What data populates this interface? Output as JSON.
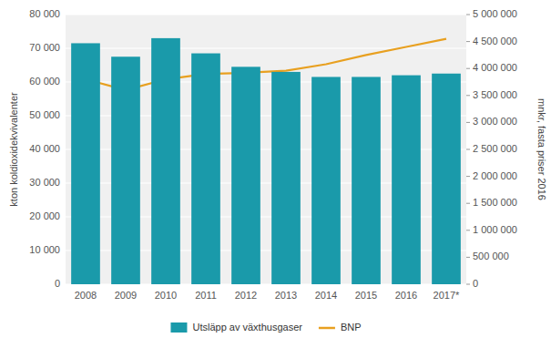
{
  "chart_data": {
    "type": "bar",
    "categories": [
      "2008",
      "2009",
      "2010",
      "2011",
      "2012",
      "2013",
      "2014",
      "2015",
      "2016",
      "2017*"
    ],
    "series": [
      {
        "name": "Utsläpp av växthusgaser",
        "type": "bar",
        "color": "#1a9aaa",
        "values": [
          71500,
          67500,
          73000,
          68500,
          64500,
          63000,
          61500,
          61500,
          62000,
          62500
        ]
      },
      {
        "name": "BNP",
        "type": "line",
        "color": "#e8a020",
        "axis": "y2",
        "values": [
          3800000,
          3600000,
          3800000,
          3900000,
          3920000,
          3960000,
          4080000,
          4250000,
          4400000,
          4550000
        ]
      }
    ],
    "ylabel": "kton koldioxidekvivalenter",
    "y2label": "mnkr, fasta priser 2016",
    "ylim": [
      0,
      80000
    ],
    "yticks": [
      0,
      {
        "value": 10000,
        "label": "10 000"
      },
      {
        "value": 20000,
        "label": "20 000"
      },
      {
        "value": 30000,
        "label": "30 000"
      },
      {
        "value": 40000,
        "label": "40 000"
      },
      {
        "value": 50000,
        "label": "50 000"
      },
      {
        "value": 60000,
        "label": "60 000"
      },
      {
        "value": 70000,
        "label": "70 000"
      },
      {
        "value": 80000,
        "label": "80 000"
      }
    ],
    "y2lim": [
      0,
      5000000
    ],
    "y2ticks": [
      0,
      {
        "value": 500000,
        "label": "500 000"
      },
      {
        "value": 1000000,
        "label": "1 000 000"
      },
      {
        "value": 1500000,
        "label": "1 500 000"
      },
      {
        "value": 2000000,
        "label": "2 000 000"
      },
      {
        "value": 2500000,
        "label": "2 500 000"
      },
      {
        "value": 3000000,
        "label": "3 000 000"
      },
      {
        "value": 3500000,
        "label": "3 500 000"
      },
      {
        "value": 4000000,
        "label": "4 000 000"
      },
      {
        "value": 4500000,
        "label": "4 500 000"
      },
      {
        "value": 5000000,
        "label": "5 000 000"
      }
    ],
    "grid": true,
    "legend": "bottom"
  }
}
